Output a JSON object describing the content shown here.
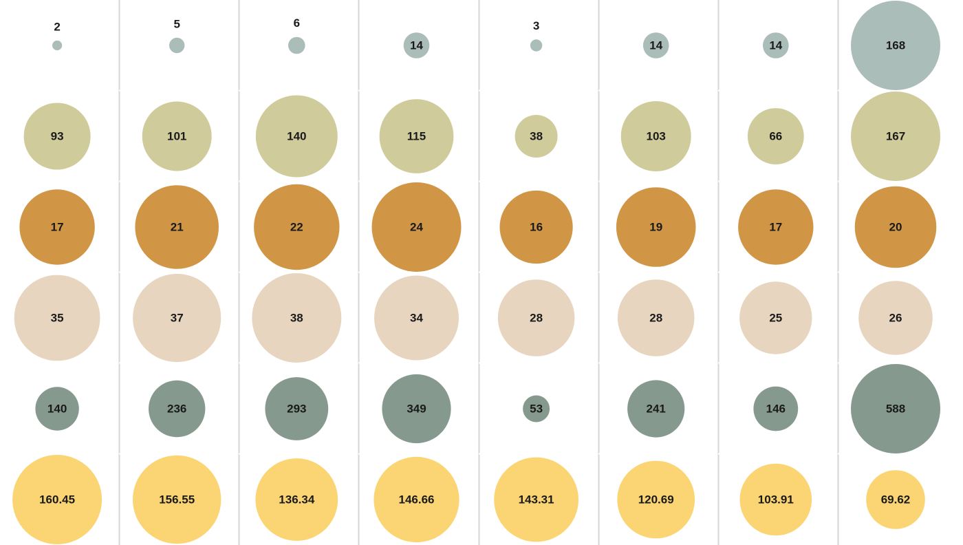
{
  "chart_data": {
    "type": "bubble-grid",
    "columns": 8,
    "grid": true,
    "rows": [
      {
        "color": "#abbdb9",
        "values": [
          "2",
          "5",
          "6",
          "14",
          "3",
          "14",
          "14",
          "168"
        ],
        "sizes": [
          2,
          5,
          6,
          14,
          3,
          14,
          14,
          168
        ]
      },
      {
        "color": "#d0cb9b",
        "values": [
          "93",
          "101",
          "140",
          "115",
          "38",
          "103",
          "66",
          "167"
        ],
        "sizes": [
          93,
          101,
          140,
          115,
          38,
          103,
          66,
          167
        ]
      },
      {
        "color": "#d09646",
        "values": [
          "17",
          "21",
          "22",
          "24",
          "16",
          "19",
          "17",
          "20"
        ],
        "sizes": [
          17,
          21,
          22,
          24,
          16,
          19,
          17,
          20
        ]
      },
      {
        "color": "#e8d5bf",
        "values": [
          "35",
          "37",
          "38",
          "34",
          "28",
          "28",
          "25",
          "26"
        ],
        "sizes": [
          35,
          37,
          38,
          34,
          28,
          28,
          25,
          26
        ]
      },
      {
        "color": "#86998f",
        "values": [
          "140",
          "236",
          "293",
          "349",
          "53",
          "241",
          "146",
          "588"
        ],
        "sizes": [
          140,
          236,
          293,
          349,
          53,
          241,
          146,
          588
        ]
      },
      {
        "color": "#fbd573",
        "values": [
          "160.45",
          "156.55",
          "136.34",
          "146.66",
          "143.31",
          "120.69",
          "103.91",
          "69.62"
        ],
        "sizes": [
          160.45,
          156.55,
          136.34,
          146.66,
          143.31,
          120.69,
          103.91,
          69.62
        ]
      }
    ]
  }
}
